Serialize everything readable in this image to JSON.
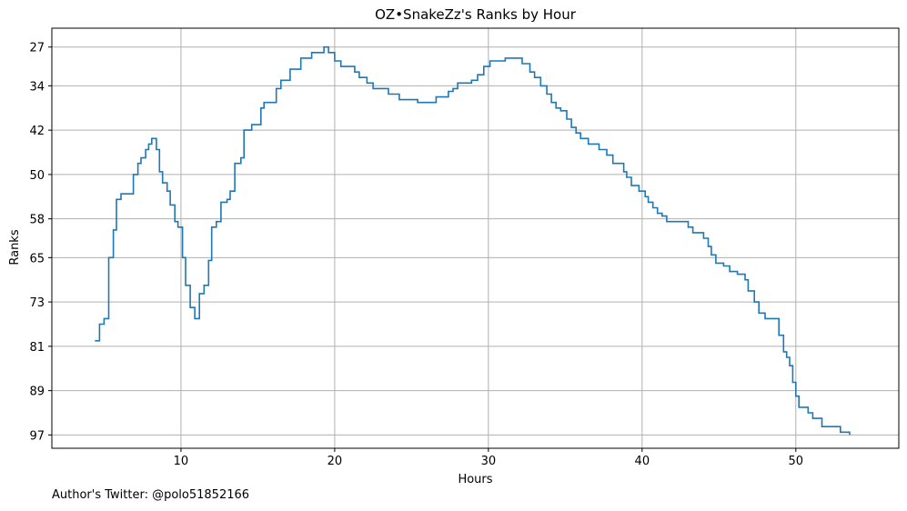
{
  "chart_data": {
    "type": "line",
    "step": true,
    "title": "OZ•SnakeZz's Ranks by Hour",
    "xlabel": "Hours",
    "ylabel": "Ranks",
    "xlim": [
      1.6,
      56.7
    ],
    "ylim": [
      99.4,
      23.6
    ],
    "y_inverted": true,
    "grid": true,
    "xticks": [
      10,
      20,
      30,
      40,
      50
    ],
    "yticks": [
      27,
      34,
      42,
      50,
      58,
      65,
      73,
      81,
      89,
      97
    ],
    "series": [
      {
        "color": "#1f77b4",
        "points": [
          [
            4.4,
            80.0
          ],
          [
            4.7,
            77.0
          ],
          [
            5.0,
            76.0
          ],
          [
            5.3,
            65.0
          ],
          [
            5.6,
            60.0
          ],
          [
            5.8,
            54.5
          ],
          [
            6.1,
            53.5
          ],
          [
            6.9,
            50.0
          ],
          [
            7.2,
            48.0
          ],
          [
            7.4,
            47.0
          ],
          [
            7.7,
            45.5
          ],
          [
            7.9,
            44.5
          ],
          [
            8.1,
            43.5
          ],
          [
            8.4,
            45.5
          ],
          [
            8.6,
            49.5
          ],
          [
            8.8,
            51.5
          ],
          [
            9.1,
            53.0
          ],
          [
            9.3,
            55.5
          ],
          [
            9.6,
            58.5
          ],
          [
            9.8,
            59.5
          ],
          [
            10.1,
            65.0
          ],
          [
            10.3,
            70.0
          ],
          [
            10.6,
            74.0
          ],
          [
            10.9,
            76.0
          ],
          [
            11.2,
            71.5
          ],
          [
            11.5,
            70.0
          ],
          [
            11.8,
            65.5
          ],
          [
            12.0,
            59.5
          ],
          [
            12.3,
            58.5
          ],
          [
            12.6,
            55.0
          ],
          [
            13.0,
            54.5
          ],
          [
            13.2,
            53.0
          ],
          [
            13.5,
            48.0
          ],
          [
            13.9,
            47.0
          ],
          [
            14.1,
            42.0
          ],
          [
            14.6,
            41.0
          ],
          [
            15.2,
            38.0
          ],
          [
            15.4,
            37.0
          ],
          [
            16.2,
            34.5
          ],
          [
            16.5,
            33.0
          ],
          [
            17.1,
            31.0
          ],
          [
            17.8,
            29.0
          ],
          [
            18.5,
            28.0
          ],
          [
            19.3,
            27.0
          ],
          [
            19.6,
            28.0
          ],
          [
            20.0,
            29.5
          ],
          [
            20.4,
            30.5
          ],
          [
            21.3,
            31.5
          ],
          [
            21.6,
            32.5
          ],
          [
            22.1,
            33.5
          ],
          [
            22.5,
            34.5
          ],
          [
            23.5,
            35.5
          ],
          [
            24.2,
            36.5
          ],
          [
            25.4,
            37.0
          ],
          [
            26.6,
            36.0
          ],
          [
            27.4,
            35.0
          ],
          [
            27.7,
            34.5
          ],
          [
            28.0,
            33.5
          ],
          [
            28.9,
            33.0
          ],
          [
            29.3,
            32.0
          ],
          [
            29.7,
            30.5
          ],
          [
            30.1,
            29.5
          ],
          [
            31.1,
            29.0
          ],
          [
            32.2,
            30.0
          ],
          [
            32.7,
            31.5
          ],
          [
            33.0,
            32.5
          ],
          [
            33.4,
            34.0
          ],
          [
            33.8,
            35.5
          ],
          [
            34.1,
            37.0
          ],
          [
            34.4,
            38.0
          ],
          [
            34.7,
            38.5
          ],
          [
            35.1,
            40.0
          ],
          [
            35.4,
            41.5
          ],
          [
            35.7,
            42.5
          ],
          [
            36.0,
            43.5
          ],
          [
            36.5,
            44.5
          ],
          [
            37.2,
            45.5
          ],
          [
            37.7,
            46.5
          ],
          [
            38.1,
            48.0
          ],
          [
            38.8,
            49.5
          ],
          [
            39.0,
            50.5
          ],
          [
            39.3,
            52.0
          ],
          [
            39.8,
            53.0
          ],
          [
            40.2,
            54.0
          ],
          [
            40.4,
            55.0
          ],
          [
            40.7,
            56.0
          ],
          [
            41.0,
            57.0
          ],
          [
            41.3,
            57.5
          ],
          [
            41.6,
            58.5
          ],
          [
            43.0,
            59.5
          ],
          [
            43.3,
            60.5
          ],
          [
            44.0,
            61.5
          ],
          [
            44.3,
            63.0
          ],
          [
            44.5,
            64.5
          ],
          [
            44.8,
            66.0
          ],
          [
            45.3,
            66.5
          ],
          [
            45.7,
            67.5
          ],
          [
            46.2,
            68.0
          ],
          [
            46.7,
            69.0
          ],
          [
            46.9,
            71.0
          ],
          [
            47.3,
            73.0
          ],
          [
            47.6,
            75.0
          ],
          [
            48.0,
            76.0
          ],
          [
            48.9,
            79.0
          ],
          [
            49.2,
            82.0
          ],
          [
            49.4,
            83.0
          ],
          [
            49.6,
            84.5
          ],
          [
            49.8,
            87.5
          ],
          [
            50.0,
            90.0
          ],
          [
            50.2,
            92.0
          ],
          [
            50.8,
            93.0
          ],
          [
            51.1,
            94.0
          ],
          [
            51.7,
            95.5
          ],
          [
            52.9,
            96.5
          ],
          [
            53.5,
            97.0
          ]
        ]
      }
    ]
  },
  "footer_text": "Author's Twitter: @polo51852166"
}
